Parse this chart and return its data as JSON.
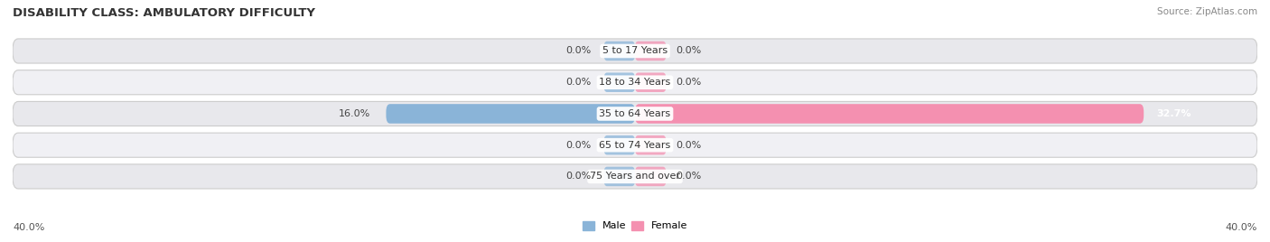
{
  "title": "DISABILITY CLASS: AMBULATORY DIFFICULTY",
  "source": "Source: ZipAtlas.com",
  "categories": [
    "5 to 17 Years",
    "18 to 34 Years",
    "35 to 64 Years",
    "65 to 74 Years",
    "75 Years and over"
  ],
  "male_values": [
    0.0,
    0.0,
    16.0,
    0.0,
    0.0
  ],
  "female_values": [
    0.0,
    0.0,
    32.7,
    0.0,
    0.0
  ],
  "max_val": 40.0,
  "male_color": "#8ab4d8",
  "female_color": "#f490b0",
  "row_bg_color": "#e8e8ec",
  "row_bg_alt_color": "#f0f0f4",
  "axis_label_left": "40.0%",
  "axis_label_right": "40.0%",
  "title_fontsize": 9.5,
  "source_fontsize": 7.5,
  "label_fontsize": 8,
  "category_fontsize": 8,
  "zero_bar_size": 2.0
}
